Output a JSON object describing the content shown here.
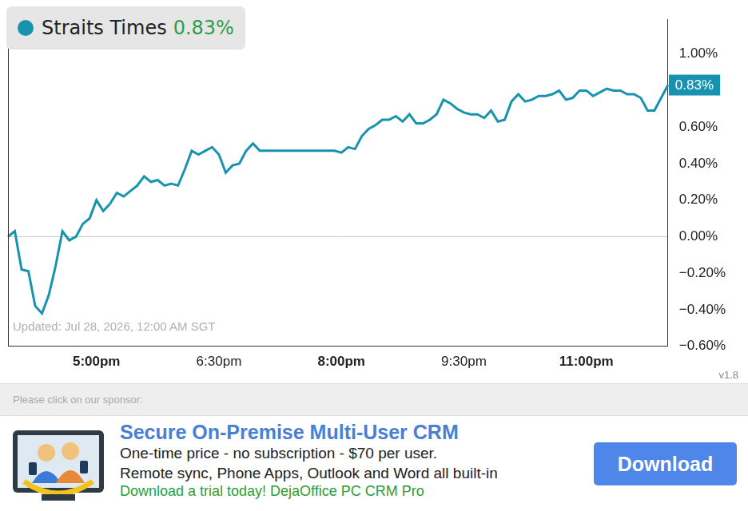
{
  "chart_data": {
    "type": "line",
    "last_label": "0.83%",
    "annotations": [
      "Updated: Jul 28, 2026, 12:00 AM SGT"
    ],
    "version": "v1.8",
    "baseline": 0,
    "grid": false,
    "legend": "top-left",
    "categories": [
      null,
      null,
      null,
      null,
      null,
      null,
      null,
      null,
      null,
      null,
      null,
      null,
      null,
      "5:00pm",
      null,
      null,
      null,
      null,
      null,
      null,
      null,
      null,
      null,
      null,
      null,
      null,
      null,
      null,
      null,
      null,
      null,
      "6:30pm",
      null,
      null,
      null,
      null,
      null,
      null,
      null,
      null,
      null,
      null,
      null,
      null,
      null,
      null,
      null,
      null,
      null,
      "8:00pm",
      null,
      null,
      null,
      null,
      null,
      null,
      null,
      null,
      null,
      null,
      null,
      null,
      null,
      null,
      null,
      null,
      null,
      "9:30pm",
      null,
      null,
      null,
      null,
      null,
      null,
      null,
      null,
      null,
      null,
      null,
      null,
      null,
      null,
      null,
      null,
      null,
      "11:00pm",
      null,
      null,
      null,
      null,
      null,
      null,
      null,
      null,
      null,
      null,
      null,
      null
    ],
    "series": [
      {
        "name": "Straits Times",
        "color": "#1793b0",
        "values": [
          0.0,
          0.03,
          -0.18,
          -0.19,
          -0.38,
          -0.42,
          -0.32,
          -0.16,
          0.03,
          -0.02,
          0.0,
          0.07,
          0.1,
          0.2,
          0.14,
          0.18,
          0.24,
          0.22,
          0.25,
          0.28,
          0.33,
          0.3,
          0.31,
          0.28,
          0.29,
          0.28,
          0.37,
          0.47,
          0.45,
          0.47,
          0.49,
          0.45,
          0.35,
          0.39,
          0.4,
          0.47,
          0.51,
          0.47,
          0.47,
          0.47,
          0.47,
          0.47,
          0.47,
          0.47,
          0.47,
          0.47,
          0.47,
          0.47,
          0.47,
          0.46,
          0.49,
          0.48,
          0.55,
          0.59,
          0.61,
          0.64,
          0.64,
          0.66,
          0.63,
          0.67,
          0.62,
          0.62,
          0.64,
          0.67,
          0.75,
          0.73,
          0.7,
          0.68,
          0.67,
          0.67,
          0.65,
          0.69,
          0.63,
          0.64,
          0.74,
          0.78,
          0.74,
          0.75,
          0.77,
          0.77,
          0.78,
          0.8,
          0.75,
          0.76,
          0.8,
          0.8,
          0.77,
          0.79,
          0.81,
          0.8,
          0.8,
          0.78,
          0.78,
          0.76,
          0.69,
          0.69,
          0.76,
          0.83
        ]
      }
    ],
    "ylim": [
      -0.6,
      1.19
    ],
    "yticks": [
      {
        "value": -0.6,
        "label": "−0.60%"
      },
      {
        "value": -0.4,
        "label": "−0.40%"
      },
      {
        "value": -0.2,
        "label": "−0.20%"
      },
      {
        "value": 0,
        "label": "0.00%"
      },
      {
        "value": 0.2,
        "label": "0.20%"
      },
      {
        "value": 0.4,
        "label": "0.40%"
      },
      {
        "value": 0.6,
        "label": "0.60%"
      },
      {
        "value": 1.0,
        "label": "1.00%"
      }
    ]
  },
  "sponsor": {
    "prompt": "Please click on our sponsor:",
    "title": "Secure On-Premise Multi-User CRM",
    "lines": [
      "One-time price - no subscription - $70 per user.",
      "Remote sync, Phone Apps, Outlook and Word all built-in"
    ],
    "call": "Download a trial today! DejaOffice PC CRM Pro",
    "button": "Download"
  }
}
